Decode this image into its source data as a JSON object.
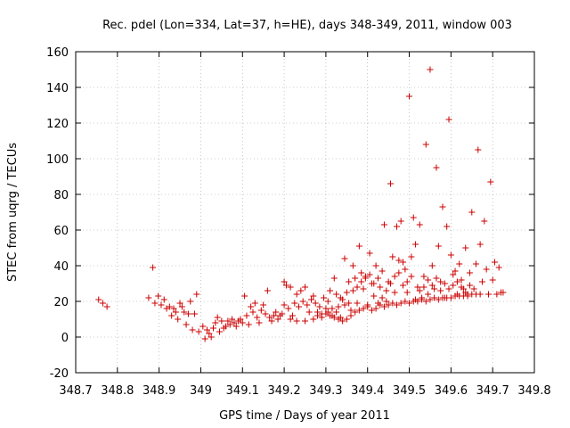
{
  "chart_data": {
    "type": "scatter",
    "title": "Rec. pdel (Lon=334, Lat=37, h=HE), days 348-349, 2011, window 003",
    "xlabel": "GPS time / Days of year 2011",
    "ylabel": "STEC from uqrg / TECUs",
    "xlim": [
      348.7,
      349.8
    ],
    "ylim": [
      -20,
      160
    ],
    "xticks": [
      "348.7",
      "348.8",
      "348.9",
      "349",
      "349.1",
      "349.2",
      "349.3",
      "349.4",
      "349.5",
      "349.6",
      "349.7",
      "349.8"
    ],
    "xtick_values": [
      348.7,
      348.8,
      348.9,
      349.0,
      349.1,
      349.2,
      349.3,
      349.4,
      349.5,
      349.6,
      349.7,
      349.8
    ],
    "yticks": [
      "-20",
      "0",
      "20",
      "40",
      "60",
      "80",
      "100",
      "120",
      "140",
      "160"
    ],
    "ytick_values": [
      -20,
      0,
      20,
      40,
      60,
      80,
      100,
      120,
      140,
      160
    ],
    "grid": true,
    "marker_color": "#cc0000",
    "marker": "plus",
    "points": [
      [
        348.755,
        21
      ],
      [
        348.765,
        19
      ],
      [
        348.775,
        17
      ],
      [
        348.875,
        22
      ],
      [
        348.885,
        39
      ],
      [
        348.89,
        19
      ],
      [
        348.898,
        23
      ],
      [
        348.905,
        18
      ],
      [
        348.912,
        21
      ],
      [
        348.918,
        16
      ],
      [
        348.925,
        17
      ],
      [
        348.93,
        12
      ],
      [
        348.935,
        16
      ],
      [
        348.94,
        14
      ],
      [
        348.945,
        10
      ],
      [
        348.95,
        19
      ],
      [
        348.955,
        17
      ],
      [
        348.96,
        14
      ],
      [
        348.965,
        7
      ],
      [
        348.97,
        13
      ],
      [
        348.975,
        20
      ],
      [
        348.98,
        4
      ],
      [
        348.985,
        13
      ],
      [
        348.99,
        24
      ],
      [
        348.995,
        3
      ],
      [
        349.005,
        6
      ],
      [
        349.01,
        -1
      ],
      [
        349.015,
        4
      ],
      [
        349.02,
        2
      ],
      [
        349.025,
        0
      ],
      [
        349.03,
        5
      ],
      [
        349.035,
        8
      ],
      [
        349.04,
        11
      ],
      [
        349.045,
        3
      ],
      [
        349.05,
        9
      ],
      [
        349.055,
        5
      ],
      [
        349.06,
        6
      ],
      [
        349.065,
        9
      ],
      [
        349.07,
        7
      ],
      [
        349.075,
        10
      ],
      [
        349.08,
        8
      ],
      [
        349.085,
        6
      ],
      [
        349.09,
        9
      ],
      [
        349.095,
        10
      ],
      [
        349.1,
        8
      ],
      [
        349.105,
        23
      ],
      [
        349.11,
        12
      ],
      [
        349.115,
        7
      ],
      [
        349.12,
        17
      ],
      [
        349.125,
        14
      ],
      [
        349.13,
        19
      ],
      [
        349.135,
        11
      ],
      [
        349.14,
        8
      ],
      [
        349.145,
        15
      ],
      [
        349.15,
        18
      ],
      [
        349.155,
        13
      ],
      [
        349.16,
        26
      ],
      [
        349.165,
        11
      ],
      [
        349.17,
        9
      ],
      [
        349.175,
        12
      ],
      [
        349.18,
        14
      ],
      [
        349.185,
        10
      ],
      [
        349.19,
        12
      ],
      [
        349.195,
        13
      ],
      [
        349.2,
        31
      ],
      [
        349.205,
        29
      ],
      [
        349.21,
        16
      ],
      [
        349.215,
        28
      ],
      [
        349.22,
        12
      ],
      [
        349.225,
        19
      ],
      [
        349.23,
        24
      ],
      [
        349.235,
        17
      ],
      [
        349.24,
        26
      ],
      [
        349.245,
        20
      ],
      [
        349.25,
        28
      ],
      [
        349.255,
        18
      ],
      [
        349.26,
        14
      ],
      [
        349.265,
        21
      ],
      [
        349.27,
        23
      ],
      [
        349.275,
        19
      ],
      [
        349.28,
        12
      ],
      [
        349.285,
        17
      ],
      [
        349.29,
        13
      ],
      [
        349.295,
        22
      ],
      [
        349.3,
        16
      ],
      [
        349.305,
        20
      ],
      [
        349.31,
        26
      ],
      [
        349.315,
        12
      ],
      [
        349.32,
        33
      ],
      [
        349.325,
        14
      ],
      [
        349.33,
        17
      ],
      [
        349.335,
        11
      ],
      [
        349.34,
        21
      ],
      [
        349.345,
        44
      ],
      [
        349.35,
        25
      ],
      [
        349.355,
        31
      ],
      [
        349.36,
        15
      ],
      [
        349.365,
        40
      ],
      [
        349.37,
        33
      ],
      [
        349.375,
        19
      ],
      [
        349.38,
        51
      ],
      [
        349.385,
        36
      ],
      [
        349.39,
        27
      ],
      [
        349.395,
        34
      ],
      [
        349.4,
        18
      ],
      [
        349.405,
        47
      ],
      [
        349.41,
        30
      ],
      [
        349.415,
        23
      ],
      [
        349.42,
        40
      ],
      [
        349.425,
        19
      ],
      [
        349.43,
        28
      ],
      [
        349.435,
        37
      ],
      [
        349.44,
        63
      ],
      [
        349.445,
        26
      ],
      [
        349.45,
        31
      ],
      [
        349.455,
        86
      ],
      [
        349.46,
        45
      ],
      [
        349.465,
        34
      ],
      [
        349.47,
        62
      ],
      [
        349.475,
        43
      ],
      [
        349.48,
        65
      ],
      [
        349.485,
        29
      ],
      [
        349.49,
        38
      ],
      [
        349.495,
        25
      ],
      [
        349.5,
        135
      ],
      [
        349.505,
        45
      ],
      [
        349.51,
        67
      ],
      [
        349.515,
        52
      ],
      [
        349.52,
        28
      ],
      [
        349.525,
        63
      ],
      [
        349.53,
        22
      ],
      [
        349.535,
        34
      ],
      [
        349.54,
        108
      ],
      [
        349.545,
        24
      ],
      [
        349.55,
        150
      ],
      [
        349.555,
        40
      ],
      [
        349.56,
        27
      ],
      [
        349.565,
        95
      ],
      [
        349.57,
        51
      ],
      [
        349.575,
        31
      ],
      [
        349.58,
        73
      ],
      [
        349.585,
        22
      ],
      [
        349.59,
        62
      ],
      [
        349.595,
        122
      ],
      [
        349.6,
        46
      ],
      [
        349.605,
        29
      ],
      [
        349.61,
        37
      ],
      [
        349.615,
        24
      ],
      [
        349.62,
        41
      ],
      [
        349.625,
        32
      ],
      [
        349.63,
        27
      ],
      [
        349.635,
        50
      ],
      [
        349.64,
        23
      ],
      [
        349.645,
        36
      ],
      [
        349.65,
        70
      ],
      [
        349.655,
        27
      ],
      [
        349.66,
        41
      ],
      [
        349.665,
        105
      ],
      [
        349.67,
        52
      ],
      [
        349.675,
        31
      ],
      [
        349.68,
        65
      ],
      [
        349.685,
        38
      ],
      [
        349.69,
        24
      ],
      [
        349.695,
        87
      ],
      [
        349.7,
        32
      ],
      [
        349.705,
        42
      ],
      [
        349.71,
        24
      ],
      [
        349.715,
        39
      ],
      [
        349.72,
        25
      ],
      [
        349.725,
        25
      ],
      [
        349.3,
        13
      ],
      [
        349.31,
        12
      ],
      [
        349.32,
        11
      ],
      [
        349.33,
        10
      ],
      [
        349.34,
        9
      ],
      [
        349.35,
        10
      ],
      [
        349.36,
        12
      ],
      [
        349.37,
        14
      ],
      [
        349.38,
        15
      ],
      [
        349.39,
        16
      ],
      [
        349.4,
        17
      ],
      [
        349.41,
        15
      ],
      [
        349.42,
        16
      ],
      [
        349.43,
        18
      ],
      [
        349.44,
        17
      ],
      [
        349.45,
        18
      ],
      [
        349.46,
        19
      ],
      [
        349.47,
        18
      ],
      [
        349.48,
        19
      ],
      [
        349.49,
        20
      ],
      [
        349.5,
        19
      ],
      [
        349.51,
        20
      ],
      [
        349.52,
        20
      ],
      [
        349.53,
        21
      ],
      [
        349.54,
        20
      ],
      [
        349.55,
        21
      ],
      [
        349.56,
        22
      ],
      [
        349.57,
        21
      ],
      [
        349.58,
        22
      ],
      [
        349.59,
        22
      ],
      [
        349.6,
        22
      ],
      [
        349.61,
        23
      ],
      [
        349.62,
        23
      ],
      [
        349.63,
        23
      ],
      [
        349.64,
        24
      ],
      [
        349.65,
        24
      ],
      [
        349.66,
        24
      ],
      [
        349.67,
        24
      ],
      [
        349.2,
        18
      ],
      [
        349.215,
        10
      ],
      [
        349.23,
        9
      ],
      [
        349.25,
        9
      ],
      [
        349.27,
        10
      ],
      [
        349.28,
        14
      ],
      [
        349.29,
        11
      ],
      [
        349.305,
        14
      ],
      [
        349.315,
        16
      ],
      [
        349.325,
        24
      ],
      [
        349.335,
        22
      ],
      [
        349.345,
        18
      ],
      [
        349.355,
        19
      ],
      [
        349.365,
        26
      ],
      [
        349.375,
        28
      ],
      [
        349.385,
        31
      ],
      [
        349.395,
        33
      ],
      [
        349.405,
        35
      ],
      [
        349.415,
        30
      ],
      [
        349.425,
        33
      ],
      [
        349.435,
        22
      ],
      [
        349.445,
        20
      ],
      [
        349.455,
        30
      ],
      [
        349.465,
        25
      ],
      [
        349.475,
        36
      ],
      [
        349.485,
        42
      ],
      [
        349.495,
        31
      ],
      [
        349.505,
        34
      ],
      [
        349.515,
        21
      ],
      [
        349.525,
        26
      ],
      [
        349.535,
        28
      ],
      [
        349.545,
        32
      ],
      [
        349.555,
        29
      ],
      [
        349.565,
        33
      ],
      [
        349.575,
        26
      ],
      [
        349.585,
        30
      ],
      [
        349.595,
        27
      ],
      [
        349.605,
        35
      ],
      [
        349.615,
        31
      ],
      [
        349.625,
        28
      ],
      [
        349.635,
        25
      ],
      [
        349.645,
        29
      ]
    ]
  }
}
